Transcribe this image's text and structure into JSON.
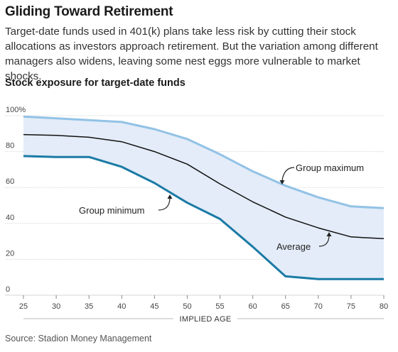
{
  "header": {
    "title": "Gliding Toward Retirement",
    "subtitle": "Target-date funds used in 401(k) plans take less risk by cutting their stock allocations as investors approach retirement. But the variation among different managers also widens, leaving some nest eggs more vulnerable to market shocks.",
    "chart_title": "Stock exposure for target-date funds"
  },
  "source": "Source: Stadion Money Management",
  "chart_data": {
    "type": "area",
    "title": "Stock exposure for target-date funds",
    "xlabel": "IMPLIED AGE",
    "ylabel": "",
    "x": [
      25,
      30,
      35,
      40,
      45,
      50,
      55,
      60,
      65,
      70,
      75,
      80
    ],
    "xlim": [
      25,
      80
    ],
    "ylim": [
      0,
      100
    ],
    "x_ticks": [
      "25",
      "30",
      "35",
      "40",
      "45",
      "50",
      "55",
      "60",
      "65",
      "70",
      "75",
      "80"
    ],
    "y_ticks": [
      "0",
      "20",
      "40",
      "60",
      "80",
      "100%"
    ],
    "y_tick_values": [
      0,
      20,
      40,
      60,
      80,
      100
    ],
    "grid": true,
    "band_color": "#e3ecf8",
    "series": [
      {
        "name": "Group maximum",
        "color": "#92c2e6",
        "width": 3,
        "values": [
          99.5,
          98.5,
          97.5,
          96.5,
          92.5,
          87,
          78.5,
          69,
          61,
          54.5,
          49.5,
          48.5
        ]
      },
      {
        "name": "Average",
        "color": "#111111",
        "width": 1.5,
        "values": [
          89.5,
          89,
          88,
          85.5,
          80,
          73,
          62,
          52,
          43.5,
          37.5,
          32.5,
          31.5
        ]
      },
      {
        "name": "Group minimum",
        "color": "#1a7aa5",
        "width": 3,
        "values": [
          77.5,
          77,
          77,
          71.5,
          62.5,
          51.5,
          42.5,
          27,
          10.5,
          9,
          9,
          9
        ]
      }
    ],
    "annotations": [
      {
        "text": "Group maximum",
        "series": "Group maximum"
      },
      {
        "text": "Average",
        "series": "Average"
      },
      {
        "text": "Group minimum",
        "series": "Group minimum"
      }
    ]
  }
}
